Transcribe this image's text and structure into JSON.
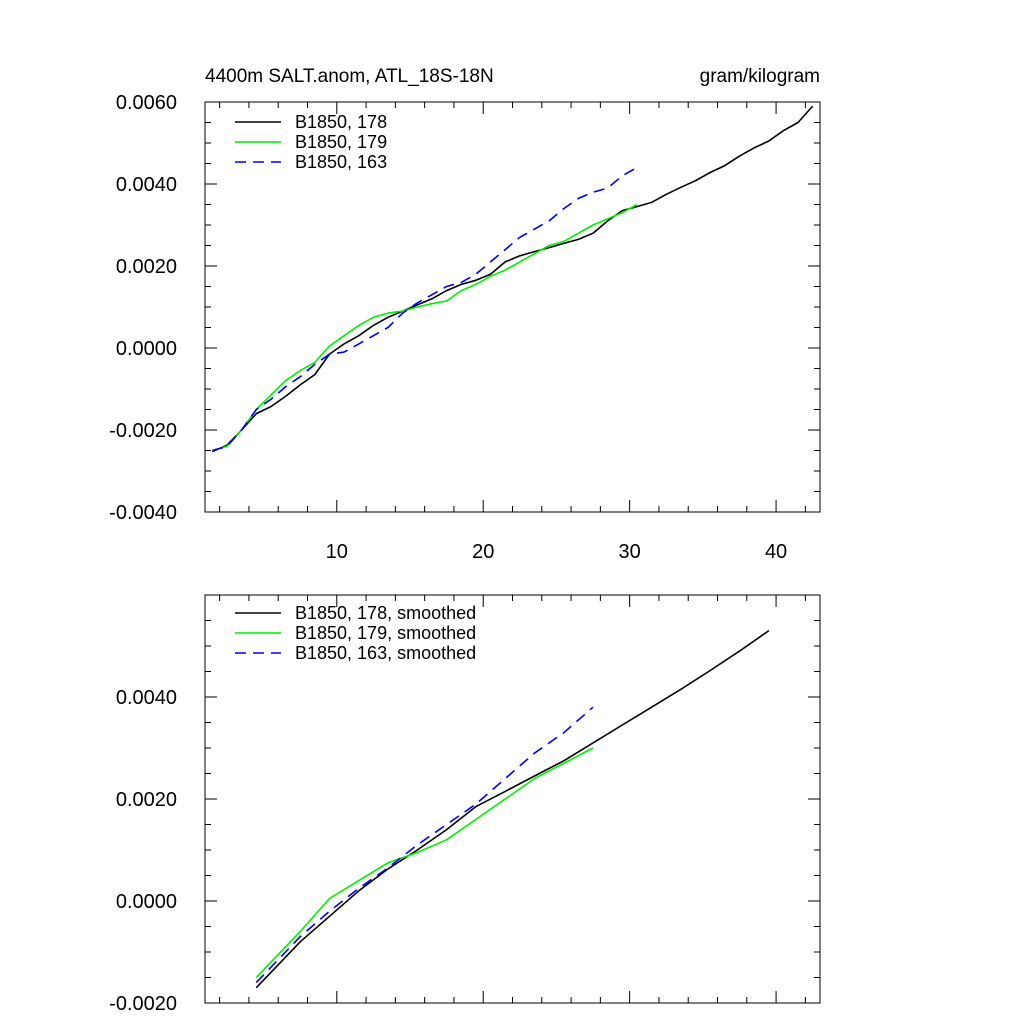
{
  "chart_data": [
    {
      "type": "line",
      "title": "4400m SALT.anom, ATL_18S-18N",
      "units": "gram/kilogram",
      "xlim": [
        1,
        43
      ],
      "ylim": [
        -0.004,
        0.006
      ],
      "xticks": [
        10,
        20,
        30,
        40
      ],
      "xtick_labels": [
        "10",
        "20",
        "30",
        "40"
      ],
      "yticks": [
        -0.004,
        -0.002,
        0.0,
        0.002,
        0.004,
        0.006
      ],
      "ytick_labels": [
        "-0.0040",
        "-0.0020",
        "0.0000",
        "0.0020",
        "0.0040",
        "0.0060"
      ],
      "legend_position": "top-left",
      "series": [
        {
          "name": "B1850, 178",
          "color": "#000000",
          "dash": "solid",
          "x": [
            1.5,
            2.5,
            3.5,
            4.5,
            5.5,
            6.5,
            7.5,
            8.5,
            9.5,
            10.5,
            11.5,
            12.5,
            13.5,
            14.5,
            15.5,
            16.5,
            17.5,
            18.5,
            19.5,
            20.5,
            21.5,
            22.5,
            23.5,
            24.5,
            25.5,
            26.5,
            27.5,
            28.5,
            29.5,
            30.5,
            31.5,
            32.5,
            33.5,
            34.5,
            35.5,
            36.5,
            37.5,
            38.5,
            39.5,
            40.5,
            41.5,
            42.5
          ],
          "y": [
            -0.00253,
            -0.00237,
            -0.002,
            -0.0016,
            -0.00143,
            -0.00118,
            -0.0009,
            -0.00065,
            -0.00015,
            0.0001,
            0.0003,
            0.00055,
            0.00075,
            0.0009,
            0.00105,
            0.0012,
            0.0014,
            0.00155,
            0.00165,
            0.0018,
            0.0021,
            0.00225,
            0.00235,
            0.00245,
            0.00255,
            0.00265,
            0.0028,
            0.0031,
            0.00335,
            0.00345,
            0.00355,
            0.00375,
            0.00392,
            0.00408,
            0.00428,
            0.00445,
            0.00468,
            0.00488,
            0.00505,
            0.0053,
            0.0055,
            0.0059
          ]
        },
        {
          "name": "B1850, 179",
          "color": "#00ee00",
          "dash": "solid",
          "x": [
            1.5,
            2.5,
            3.5,
            4.5,
            5.5,
            6.5,
            7.5,
            8.5,
            9.5,
            10.5,
            11.5,
            12.5,
            13.5,
            14.5,
            15.5,
            16.5,
            17.5,
            18.5,
            19.5,
            20.5,
            21.5,
            22.5,
            23.5,
            24.5,
            25.5,
            26.5,
            27.5,
            28.5,
            29.5,
            30.5
          ],
          "y": [
            -0.0025,
            -0.0024,
            -0.002,
            -0.0015,
            -0.00115,
            -0.0008,
            -0.00055,
            -0.00035,
            5e-05,
            0.0003,
            0.00055,
            0.00075,
            0.00085,
            0.0009,
            0.001,
            0.00108,
            0.00115,
            0.0014,
            0.00155,
            0.00175,
            0.0019,
            0.0021,
            0.0023,
            0.0025,
            0.0026,
            0.0028,
            0.003,
            0.00315,
            0.0033,
            0.0035
          ]
        },
        {
          "name": "B1850, 163",
          "color": "#0000ee",
          "dash": "dashed",
          "x": [
            1.5,
            2.5,
            3.5,
            4.5,
            5.5,
            6.5,
            7.5,
            8.5,
            9.5,
            10.5,
            11.5,
            12.5,
            13.5,
            14.5,
            15.5,
            16.5,
            17.5,
            18.5,
            19.5,
            20.5,
            21.5,
            22.5,
            23.5,
            24.5,
            25.5,
            26.5,
            27.5,
            28.5,
            29.5,
            30.5
          ],
          "y": [
            -0.0025,
            -0.0024,
            -0.002,
            -0.0015,
            -0.00125,
            -0.00095,
            -0.0007,
            -0.0004,
            -0.00015,
            -0.0001,
            0.0001,
            0.0003,
            0.0005,
            0.00085,
            0.0011,
            0.0013,
            0.0015,
            0.0016,
            0.0018,
            0.0021,
            0.0024,
            0.0027,
            0.0029,
            0.0031,
            0.0034,
            0.00365,
            0.0038,
            0.0039,
            0.0042,
            0.0044
          ]
        }
      ]
    },
    {
      "type": "line",
      "title": "",
      "xlim": [
        1,
        43
      ],
      "ylim": [
        -0.002,
        0.006
      ],
      "xticks": [
        10,
        20,
        30,
        40
      ],
      "xtick_labels": [],
      "yticks": [
        -0.002,
        0.0,
        0.002,
        0.004
      ],
      "ytick_labels": [
        "-0.0020",
        "0.0000",
        "0.0020",
        "0.0040"
      ],
      "legend_position": "top-left",
      "series": [
        {
          "name": "B1850, 178, smoothed",
          "color": "#000000",
          "dash": "solid",
          "x": [
            4.5,
            5.5,
            7.5,
            9.5,
            11.5,
            13.5,
            15.5,
            17.5,
            19.5,
            21.5,
            23.5,
            25.5,
            27.5,
            29.5,
            31.5,
            33.5,
            35.5,
            37.5,
            39.5
          ],
          "y": [
            -0.0017,
            -0.0014,
            -0.0008,
            -0.0003,
            0.0002,
            0.00063,
            0.001,
            0.0014,
            0.00185,
            0.00215,
            0.00245,
            0.00275,
            0.0031,
            0.00345,
            0.0038,
            0.00415,
            0.00452,
            0.0049,
            0.0053
          ]
        },
        {
          "name": "B1850, 179, smoothed",
          "color": "#00ee00",
          "dash": "solid",
          "x": [
            4.5,
            5.5,
            7.5,
            9.5,
            11.5,
            13.5,
            15.5,
            17.5,
            19.5,
            21.5,
            23.5,
            25.5,
            27.5
          ],
          "y": [
            -0.0015,
            -0.0012,
            -0.0006,
            5e-05,
            0.0004,
            0.00075,
            0.00095,
            0.0012,
            0.0016,
            0.002,
            0.0024,
            0.0027,
            0.003
          ]
        },
        {
          "name": "B1850, 163, smoothed",
          "color": "#0000ee",
          "dash": "dashed",
          "x": [
            4.5,
            5.5,
            7.5,
            9.5,
            11.5,
            13.5,
            15.5,
            17.5,
            19.5,
            21.5,
            23.5,
            25.5,
            27.5
          ],
          "y": [
            -0.0016,
            -0.0013,
            -0.0007,
            -0.0002,
            0.00025,
            0.00065,
            0.0011,
            0.0015,
            0.0019,
            0.0024,
            0.0029,
            0.0033,
            0.0038
          ]
        }
      ]
    }
  ]
}
